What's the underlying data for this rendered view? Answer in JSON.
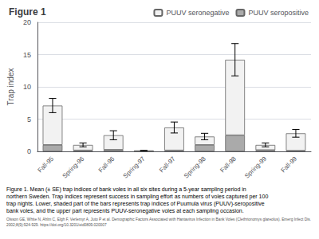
{
  "chart_data": {
    "type": "bar",
    "title": "Figure 1",
    "ylabel": "Trap index",
    "categories": [
      "Fall-95",
      "Spring-96",
      "Fall-96",
      "Spring-97",
      "Fall-97",
      "Spring-98",
      "Fall-98",
      "Spring-99",
      "Fall-99"
    ],
    "series": [
      {
        "name": "PUUV seropositive",
        "color": "#aaaaaa",
        "values": [
          1.0,
          0.15,
          0.25,
          0.05,
          0.15,
          1.0,
          2.5,
          0.2,
          0.1
        ]
      },
      {
        "name": "PUUV seronegative",
        "color": "#f2f2f2",
        "values": [
          6.1,
          0.85,
          2.25,
          0.05,
          3.55,
          1.3,
          11.7,
          0.8,
          2.7
        ],
        "errors": [
          1.1,
          0.3,
          0.7,
          0.05,
          0.85,
          0.5,
          2.5,
          0.3,
          0.6
        ]
      }
    ],
    "stacked": true,
    "ylim": [
      0,
      20
    ],
    "yticks": [
      0,
      5,
      10,
      15,
      20
    ],
    "grid": true,
    "legend": "upper right",
    "caption": [
      "Figure 1. Mean (± SE) trap indices of bank voles in all six sites during a 5-year sampling period in",
      "northern Sweden. Trap indices represent success in sampling effort as numbers of voles captured per 100",
      "trap nights. Lower, shaded part of the bars represents trap indices of Puumula virus (PUUV)-seropositive",
      "bank voles, and the upper part represents PUUV-seronegative voles at each sampling occasion."
    ],
    "citation": [
      "Olsson GE, White N, Ahlm C, Elgh F, Verlemyr A, Juto P et al. Demographic Factors Associated with Hantavirus Infection in Bank Voles (Clethrionomys glareolus). Emerg Infect Dis.",
      "2002;8(9):924-929. https://doi.org/10.3201/eid0809.020007"
    ]
  }
}
